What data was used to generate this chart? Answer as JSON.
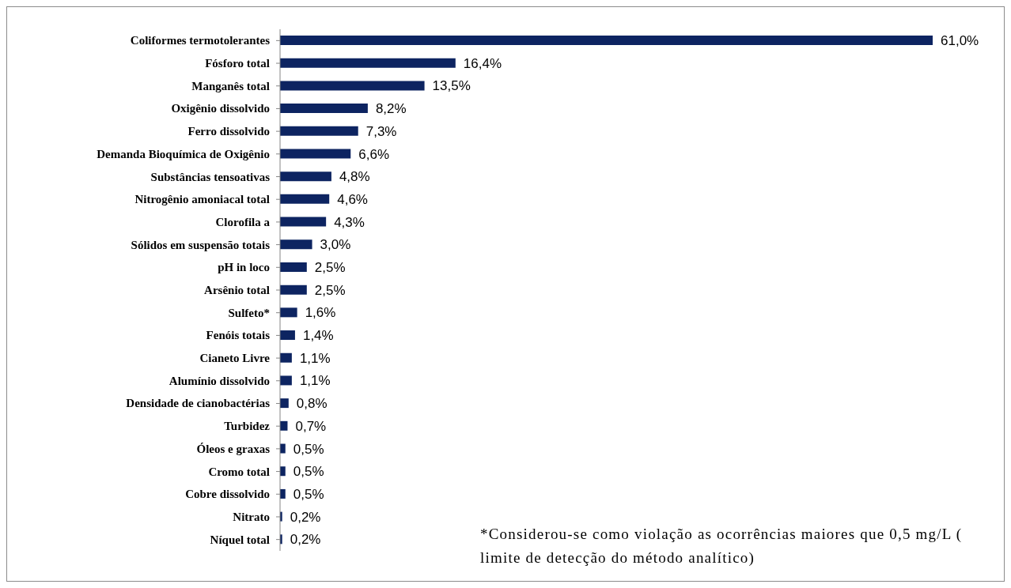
{
  "chart_data": {
    "type": "bar",
    "orientation": "horizontal",
    "categories": [
      "Coliformes termotolerantes",
      "Fósforo total",
      "Manganês total",
      "Oxigênio dissolvido",
      "Ferro dissolvido",
      "Demanda Bioquímica de Oxigênio",
      "Substâncias tensoativas",
      "Nitrogênio amoniacal total",
      "Clorofila a",
      "Sólidos em suspensão totais",
      "pH in loco",
      "Arsênio total",
      "Sulfeto*",
      "Fenóis totais",
      "Cianeto Livre",
      "Alumínio dissolvido",
      "Densidade de cianobactérias",
      "Turbidez",
      "Óleos e graxas",
      "Cromo total",
      "Cobre dissolvido",
      "Nitrato",
      "Níquel total"
    ],
    "values": [
      61.0,
      16.4,
      13.5,
      8.2,
      7.3,
      6.6,
      4.8,
      4.6,
      4.3,
      3.0,
      2.5,
      2.5,
      1.6,
      1.4,
      1.1,
      1.1,
      0.8,
      0.7,
      0.5,
      0.5,
      0.5,
      0.2,
      0.2
    ],
    "value_labels": [
      "61,0%",
      "16,4%",
      "13,5%",
      "8,2%",
      "7,3%",
      "6,6%",
      "4,8%",
      "4,6%",
      "4,3%",
      "3,0%",
      "2,5%",
      "2,5%",
      "1,6%",
      "1,4%",
      "1,1%",
      "1,1%",
      "0,8%",
      "0,7%",
      "0,5%",
      "0,5%",
      "0,5%",
      "0,2%",
      "0,2%"
    ],
    "color": "#0d2461",
    "annotations": [
      "*Considerou-se como violação as ocorrências maiores que 0,5 mg/L ( limite de detecção do método analítico)"
    ]
  }
}
